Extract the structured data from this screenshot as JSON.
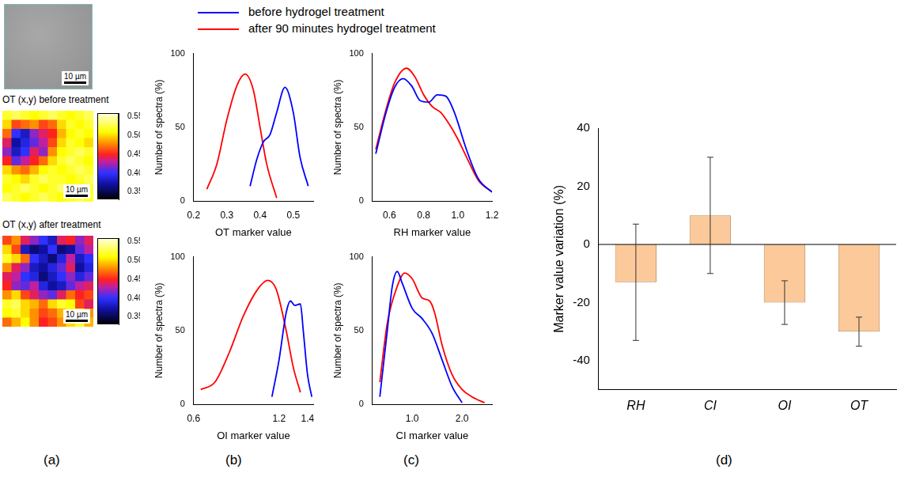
{
  "panel_labels": [
    "(a)",
    "(b)",
    "(c)",
    "(d)"
  ],
  "chart_data": [
    {
      "type": "image",
      "color": "#9c9c9c",
      "scale_bar": "10 µm"
    },
    {
      "type": "heatmap",
      "title": "OT (x,y) before treatment",
      "scale_bar": "10 µm",
      "tick_labels": false,
      "cells": [
        [
          0.52,
          0.53,
          0.52,
          0.51,
          0.52,
          0.53,
          0.52,
          0.51,
          0.52,
          0.53
        ],
        [
          0.5,
          0.46,
          0.47,
          0.48,
          0.46,
          0.47,
          0.5,
          0.52,
          0.51,
          0.52
        ],
        [
          0.47,
          0.4,
          0.38,
          0.42,
          0.44,
          0.45,
          0.49,
          0.51,
          0.52,
          0.51
        ],
        [
          0.44,
          0.37,
          0.39,
          0.41,
          0.43,
          0.46,
          0.5,
          0.52,
          0.51,
          0.5
        ],
        [
          0.42,
          0.38,
          0.4,
          0.44,
          0.42,
          0.48,
          0.51,
          0.52,
          0.53,
          0.52
        ],
        [
          0.45,
          0.41,
          0.43,
          0.45,
          0.47,
          0.5,
          0.52,
          0.53,
          0.52,
          0.51
        ],
        [
          0.5,
          0.48,
          0.47,
          0.49,
          0.51,
          0.52,
          0.51,
          0.52,
          0.53,
          0.52
        ],
        [
          0.52,
          0.51,
          0.5,
          0.52,
          0.53,
          0.52,
          0.52,
          0.51,
          0.52,
          0.53
        ],
        [
          0.51,
          0.52,
          0.53,
          0.52,
          0.51,
          0.52,
          0.53,
          0.52,
          0.51,
          0.52
        ],
        [
          0.53,
          0.52,
          0.51,
          0.52,
          0.53,
          0.52,
          0.51,
          0.52,
          0.53,
          0.52
        ]
      ],
      "colorbar": {
        "range": [
          0.33,
          0.56
        ],
        "ticks": [
          0.35,
          {
            "value": 0.4,
            "label": "0.40"
          },
          0.45,
          {
            "value": 0.5,
            "label": "0.50"
          },
          0.55
        ]
      }
    },
    {
      "type": "heatmap",
      "title": "OT (x,y) after treatment",
      "scale_bar": "10 µm",
      "tick_labels": false,
      "cells": [
        [
          0.46,
          0.48,
          0.44,
          0.42,
          0.4,
          0.38,
          0.44,
          0.45,
          0.42,
          0.44
        ],
        [
          0.5,
          0.46,
          0.38,
          0.36,
          0.37,
          0.4,
          0.36,
          0.37,
          0.41,
          0.43
        ],
        [
          0.52,
          0.5,
          0.47,
          0.4,
          0.38,
          0.36,
          0.39,
          0.43,
          0.38,
          0.4
        ],
        [
          0.48,
          0.44,
          0.42,
          0.38,
          0.37,
          0.39,
          0.41,
          0.44,
          0.37,
          0.39
        ],
        [
          0.44,
          0.43,
          0.4,
          0.39,
          0.36,
          0.38,
          0.4,
          0.42,
          0.39,
          0.41
        ],
        [
          0.45,
          0.42,
          0.41,
          0.43,
          0.39,
          0.37,
          0.38,
          0.41,
          0.43,
          0.44
        ],
        [
          0.48,
          0.5,
          0.46,
          0.44,
          0.42,
          0.41,
          0.44,
          0.47,
          0.45,
          0.46
        ],
        [
          0.52,
          0.53,
          0.5,
          0.49,
          0.47,
          0.5,
          0.52,
          0.51,
          0.46,
          0.44
        ],
        [
          0.51,
          0.52,
          0.5,
          0.48,
          0.46,
          0.47,
          0.49,
          0.52,
          0.53,
          0.48
        ],
        [
          0.47,
          0.49,
          0.51,
          0.48,
          0.45,
          0.46,
          0.48,
          0.5,
          0.52,
          0.49
        ]
      ],
      "colorbar": {
        "range": [
          0.33,
          0.56
        ],
        "ticks": [
          0.35,
          {
            "value": 0.4,
            "label": "0.40"
          },
          0.45,
          {
            "value": 0.5,
            "label": "0.50"
          },
          0.55
        ]
      }
    },
    {
      "type": "line",
      "x_label": "OT marker value",
      "y_label": "Number of spectra (%)",
      "xlim": [
        0.2,
        0.56
      ],
      "xticks": [
        0.2,
        0.3,
        0.4,
        0.5
      ],
      "ylim": [
        0,
        100
      ],
      "yticks": [
        0,
        50,
        100
      ],
      "grid": false,
      "legend": "top",
      "series": [
        {
          "name": "before hydrogel treatment",
          "color": "#0000ff",
          "line_style": "solid",
          "marker": "none",
          "x": [
            0.37,
            0.39,
            0.41,
            0.43,
            0.45,
            0.475,
            0.5,
            0.52,
            0.545
          ],
          "values": [
            10,
            28,
            40,
            45,
            60,
            77,
            60,
            30,
            10
          ]
        },
        {
          "name": "after 90 minutes hydrogel treatment",
          "color": "#ff0000",
          "line_style": "solid",
          "marker": "none",
          "x": [
            0.24,
            0.27,
            0.3,
            0.33,
            0.355,
            0.38,
            0.4,
            0.42,
            0.45
          ],
          "values": [
            8,
            25,
            55,
            78,
            86,
            75,
            50,
            25,
            2
          ]
        }
      ]
    },
    {
      "type": "line",
      "x_label": "OI marker value",
      "y_label": "Number of spectra (%)",
      "xlim": [
        0.6,
        1.44
      ],
      "xticks": [
        0.6,
        1.2,
        1.4
      ],
      "ylim": [
        0,
        100
      ],
      "yticks": [
        0,
        50,
        100
      ],
      "grid": false,
      "series": [
        {
          "name": "before hydrogel treatment",
          "color": "#0000ff",
          "line_style": "solid",
          "marker": "none",
          "x": [
            1.15,
            1.2,
            1.25,
            1.28,
            1.31,
            1.35,
            1.37,
            1.4,
            1.43
          ],
          "values": [
            5,
            30,
            62,
            70,
            67,
            68,
            50,
            20,
            5
          ]
        },
        {
          "name": "after 90 minutes hydrogel treatment",
          "color": "#ff0000",
          "line_style": "solid",
          "marker": "none",
          "x": [
            0.65,
            0.75,
            0.85,
            0.95,
            1.05,
            1.12,
            1.18,
            1.25,
            1.3,
            1.35
          ],
          "values": [
            10,
            15,
            35,
            60,
            78,
            84,
            78,
            50,
            25,
            8
          ]
        }
      ]
    },
    {
      "type": "line",
      "x_label": "RH marker value",
      "y_label": "Number of spectra (%)",
      "xlim": [
        0.5,
        1.2
      ],
      "xticks": [
        0.6,
        0.8,
        {
          "value": 1,
          "label": "1.0"
        },
        1.2
      ],
      "ylim": [
        0,
        100
      ],
      "yticks": [
        0,
        50,
        100
      ],
      "grid": false,
      "series": [
        {
          "name": "before hydrogel treatment",
          "color": "#0000ff",
          "line_style": "solid",
          "marker": "none",
          "x": [
            0.52,
            0.58,
            0.63,
            0.68,
            0.73,
            0.78,
            0.83,
            0.88,
            0.93,
            0.98,
            1.05,
            1.12,
            1.2
          ],
          "values": [
            32,
            60,
            77,
            83,
            78,
            68,
            67,
            72,
            71,
            60,
            35,
            15,
            6
          ]
        },
        {
          "name": "after 90 minutes hydrogel treatment",
          "color": "#ff0000",
          "line_style": "solid",
          "marker": "none",
          "x": [
            0.52,
            0.58,
            0.63,
            0.7,
            0.75,
            0.8,
            0.85,
            0.9,
            0.95,
            1.0,
            1.05,
            1.12,
            1.2
          ],
          "values": [
            35,
            62,
            80,
            90,
            84,
            72,
            64,
            60,
            52,
            42,
            30,
            14,
            6
          ]
        }
      ]
    },
    {
      "type": "line",
      "x_label": "CI marker value",
      "y_label": "Number of spectra (%)",
      "xlim": [
        0.2,
        2.6
      ],
      "xticks": [
        {
          "value": 1,
          "label": "1.0"
        },
        {
          "value": 2,
          "label": "2.0"
        }
      ],
      "ylim": [
        0,
        100
      ],
      "yticks": [
        0,
        50,
        100
      ],
      "grid": false,
      "series": [
        {
          "name": "before hydrogel treatment",
          "color": "#0000ff",
          "line_style": "solid",
          "marker": "none",
          "x": [
            0.35,
            0.5,
            0.6,
            0.7,
            0.8,
            1.0,
            1.2,
            1.4,
            1.6,
            1.8,
            2.0
          ],
          "values": [
            5,
            50,
            80,
            90,
            82,
            65,
            58,
            48,
            30,
            12,
            1
          ]
        },
        {
          "name": "after 90 minutes hydrogel treatment",
          "color": "#ff0000",
          "line_style": "solid",
          "marker": "none",
          "x": [
            0.35,
            0.5,
            0.7,
            0.85,
            1.0,
            1.2,
            1.35,
            1.45,
            1.6,
            1.8,
            2.0,
            2.2,
            2.45
          ],
          "values": [
            15,
            55,
            80,
            89,
            85,
            72,
            70,
            62,
            40,
            20,
            10,
            5,
            1
          ]
        }
      ]
    },
    {
      "type": "bar",
      "y_label": "Marker value variation (%)",
      "categories": [
        "RH",
        "CI",
        "OI",
        "OT"
      ],
      "values": [
        -13,
        10,
        -20,
        -30
      ],
      "errors": [
        20,
        20,
        7.5,
        5
      ],
      "color": "#fcc99b",
      "ylim": [
        -50,
        40
      ],
      "yticks": [
        -40,
        -20,
        0,
        20,
        40
      ],
      "grid": false
    }
  ]
}
